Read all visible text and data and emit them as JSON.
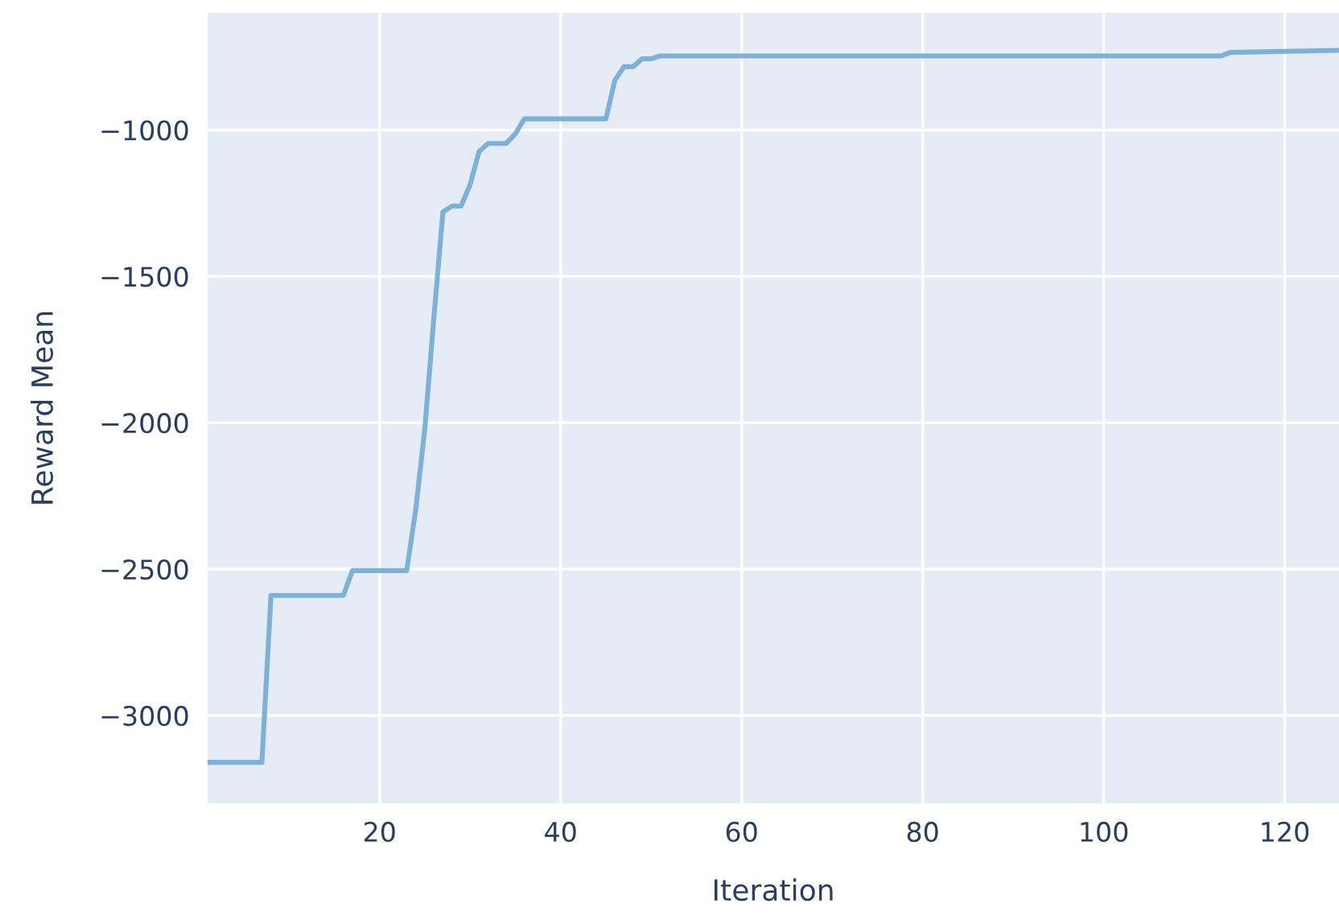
{
  "chart_data": {
    "type": "line",
    "xlabel": "Iteration",
    "ylabel": "Reward Mean",
    "xlim": [
      1,
      126
    ],
    "xticks": [
      20,
      40,
      60,
      80,
      100,
      120
    ],
    "ylim": [
      -3300,
      -600
    ],
    "yticks": [
      {
        "value": -1000,
        "label": "−1000"
      },
      {
        "value": -1500,
        "label": "−1500"
      },
      {
        "value": -2000,
        "label": "−2000"
      },
      {
        "value": -2500,
        "label": "−2500"
      },
      {
        "value": -3000,
        "label": "−3000"
      }
    ],
    "grid": true,
    "marker": "none",
    "line_style": "solid",
    "series": [
      {
        "color": "#7fb1d6",
        "x": [
          1,
          7,
          8,
          16,
          17,
          23,
          24,
          25,
          26,
          27,
          28,
          29,
          30,
          31,
          32,
          34,
          35,
          36,
          45,
          46,
          47,
          48,
          49,
          50,
          51,
          113,
          114,
          126
        ],
        "values": [
          -3160,
          -3160,
          -2590,
          -2590,
          -2505,
          -2505,
          -2295,
          -2020,
          -1640,
          -1280,
          -1260,
          -1260,
          -1187,
          -1073,
          -1046,
          -1046,
          -1013,
          -962,
          -962,
          -830,
          -784,
          -784,
          -757,
          -757,
          -747,
          -747,
          -735,
          -728
        ]
      }
    ]
  }
}
